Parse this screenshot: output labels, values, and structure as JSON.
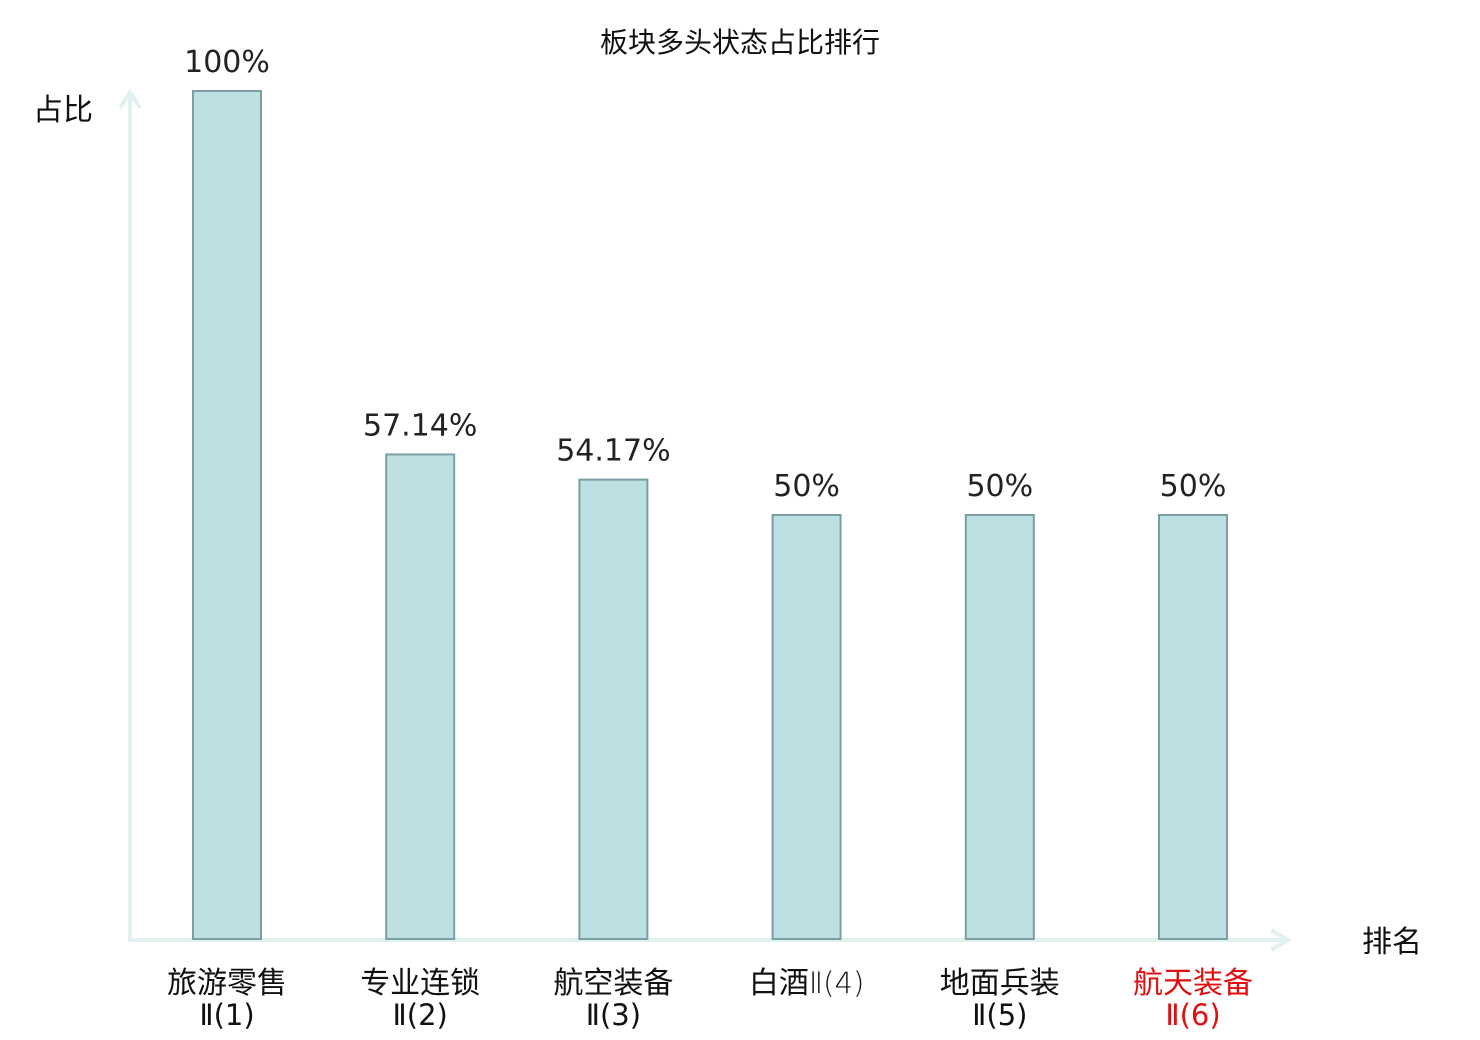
{
  "chart_data": {
    "type": "bar",
    "title": "板块多头状态占比排行",
    "ylabel": "占比",
    "xlabel": "排名",
    "ylim": [
      0,
      100
    ],
    "grid": false,
    "categories": [
      {
        "name": "旅游零售",
        "suffix": "Ⅱ(1)",
        "highlight": false
      },
      {
        "name": "专业连锁",
        "suffix": "Ⅱ(2)",
        "highlight": false
      },
      {
        "name": "航空装备",
        "suffix": "Ⅱ(3)",
        "highlight": false
      },
      {
        "name": "白酒",
        "suffix": "Ⅱ(4)",
        "highlight": false,
        "inline": true
      },
      {
        "name": "地面兵装",
        "suffix": "Ⅱ(5)",
        "highlight": false
      },
      {
        "name": "航天装备",
        "suffix": "Ⅱ(6)",
        "highlight": true
      }
    ],
    "values": [
      100,
      57.14,
      54.17,
      50,
      50,
      50
    ],
    "value_labels": [
      "100%",
      "57.14%",
      "54.17%",
      "50%",
      "50%",
      "50%"
    ]
  },
  "colors": {
    "bar_fill": "#bde0e3",
    "bar_stroke": "#7a9ea2",
    "axis": "#e0f2f0",
    "text": "#111111",
    "highlight": "#e01010"
  }
}
